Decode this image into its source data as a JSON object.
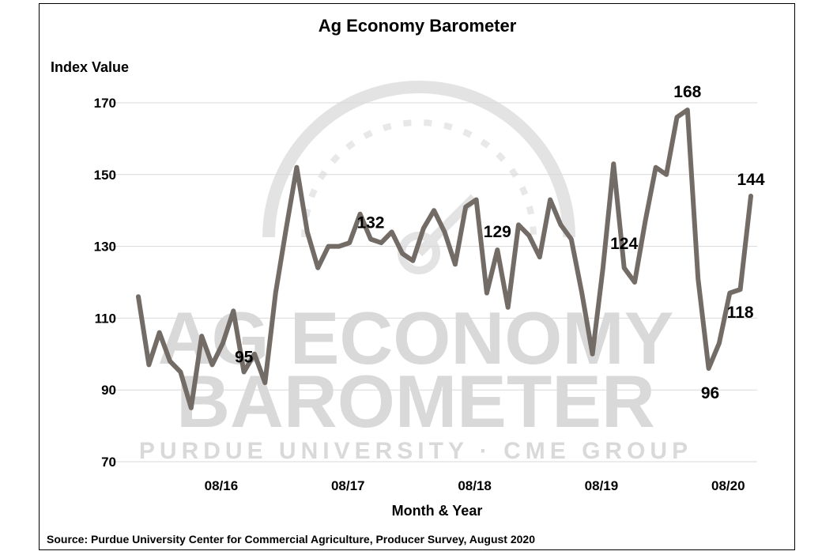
{
  "chart_data": {
    "type": "line",
    "title": "Ag Economy Barometer",
    "ylabel": "Index Value",
    "xlabel": "Month & Year",
    "source": "Source: Purdue University Center for Commercial Agriculture, Producer Survey, August 2020",
    "ylim": [
      70,
      175
    ],
    "yticks": [
      70,
      90,
      110,
      130,
      150,
      170
    ],
    "xticks": [
      {
        "index": 8,
        "label": "08/16"
      },
      {
        "index": 20,
        "label": "08/17"
      },
      {
        "index": 32,
        "label": "08/18"
      },
      {
        "index": 44,
        "label": "08/19"
      },
      {
        "index": 56,
        "label": "08/20"
      }
    ],
    "grid": true,
    "line_color": "#736b66",
    "series": [
      {
        "values": [
          116,
          97,
          106,
          98,
          95,
          85,
          105,
          97,
          103,
          112,
          95,
          100,
          92,
          117,
          135,
          152,
          134,
          124,
          130,
          130,
          131,
          139,
          132,
          131,
          134,
          128,
          126,
          135,
          140,
          134,
          125,
          141,
          143,
          117,
          129,
          113,
          136,
          133,
          127,
          143,
          136,
          132,
          117,
          100,
          124,
          153,
          124,
          120,
          137,
          152,
          150,
          166,
          168,
          121,
          96,
          103,
          117,
          118,
          144
        ]
      }
    ],
    "annotations": [
      {
        "index": 10,
        "label": "95"
      },
      {
        "index": 22,
        "label": "132"
      },
      {
        "index": 34,
        "label": "129"
      },
      {
        "index": 46,
        "label": "124"
      },
      {
        "index": 52,
        "label": "168"
      },
      {
        "index": 54,
        "label": "96"
      },
      {
        "index": 57,
        "label": "118"
      },
      {
        "index": 58,
        "label": "144"
      }
    ],
    "watermark": {
      "line1": "AG ECONOMY",
      "line2": "BAROMETER",
      "line3": "PURDUE UNIVERSITY · CME GROUP"
    }
  }
}
